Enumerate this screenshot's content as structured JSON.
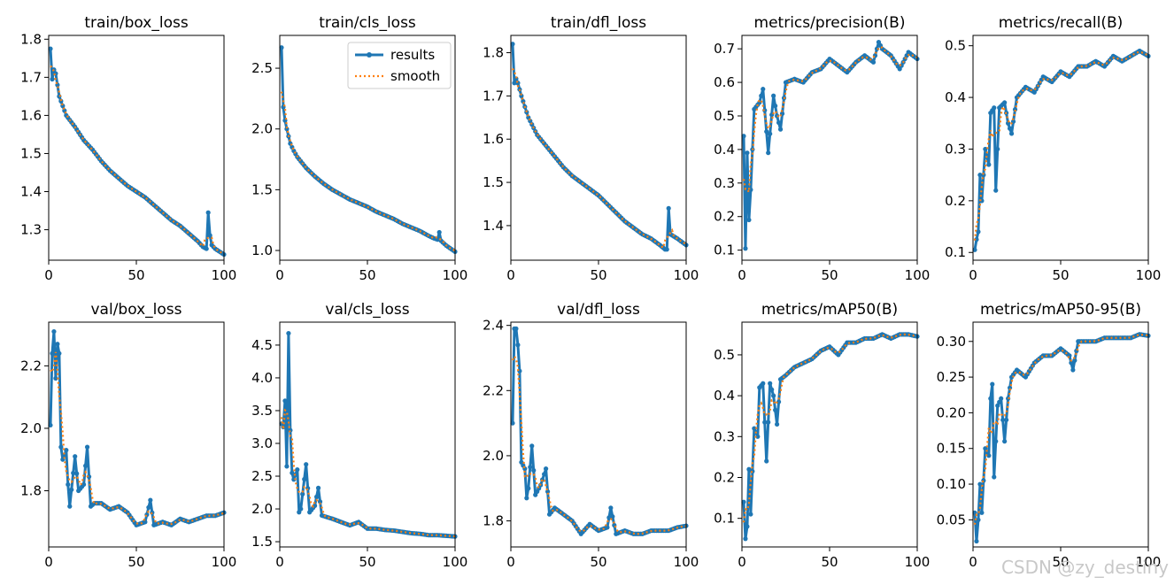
{
  "figure": {
    "watermark": "CSDN @zy_destiny"
  },
  "colors": {
    "results": "#1f77b4",
    "smooth": "#ff7f0e",
    "axis": "#000000"
  },
  "chart_data": [
    {
      "type": "line",
      "title": "train/box_loss",
      "xlim": [
        0,
        100
      ],
      "ylim": [
        1.22,
        1.81
      ],
      "xticks": [
        0,
        50,
        100
      ],
      "yticks": [
        1.3,
        1.4,
        1.5,
        1.6,
        1.7,
        1.8
      ],
      "anchors": [
        [
          1,
          1.775
        ],
        [
          2,
          1.695
        ],
        [
          3,
          1.72
        ],
        [
          4,
          1.71
        ],
        [
          6,
          1.65
        ],
        [
          10,
          1.6
        ],
        [
          15,
          1.57
        ],
        [
          20,
          1.535
        ],
        [
          25,
          1.51
        ],
        [
          30,
          1.48
        ],
        [
          35,
          1.455
        ],
        [
          40,
          1.435
        ],
        [
          45,
          1.415
        ],
        [
          50,
          1.4
        ],
        [
          55,
          1.385
        ],
        [
          60,
          1.365
        ],
        [
          65,
          1.345
        ],
        [
          70,
          1.325
        ],
        [
          75,
          1.31
        ],
        [
          80,
          1.29
        ],
        [
          85,
          1.27
        ],
        [
          88,
          1.255
        ],
        [
          90,
          1.25
        ],
        [
          91,
          1.345
        ],
        [
          92,
          1.285
        ],
        [
          93,
          1.26
        ],
        [
          95,
          1.25
        ],
        [
          100,
          1.235
        ]
      ]
    },
    {
      "type": "line",
      "title": "train/cls_loss",
      "xlim": [
        0,
        100
      ],
      "ylim": [
        0.92,
        2.77
      ],
      "xticks": [
        0,
        50,
        100
      ],
      "yticks": [
        1.0,
        1.5,
        2.0,
        2.5
      ],
      "legend": {
        "position": "top-right",
        "entries": [
          "results",
          "smooth"
        ]
      },
      "anchors": [
        [
          1,
          2.67
        ],
        [
          2,
          2.18
        ],
        [
          3,
          2.07
        ],
        [
          4,
          2.0
        ],
        [
          6,
          1.88
        ],
        [
          8,
          1.82
        ],
        [
          10,
          1.77
        ],
        [
          15,
          1.68
        ],
        [
          20,
          1.61
        ],
        [
          25,
          1.55
        ],
        [
          30,
          1.5
        ],
        [
          35,
          1.46
        ],
        [
          40,
          1.42
        ],
        [
          45,
          1.39
        ],
        [
          50,
          1.36
        ],
        [
          55,
          1.32
        ],
        [
          60,
          1.29
        ],
        [
          65,
          1.26
        ],
        [
          70,
          1.22
        ],
        [
          75,
          1.19
        ],
        [
          80,
          1.16
        ],
        [
          85,
          1.12
        ],
        [
          88,
          1.1
        ],
        [
          90,
          1.09
        ],
        [
          91,
          1.15
        ],
        [
          92,
          1.08
        ],
        [
          95,
          1.04
        ],
        [
          100,
          0.99
        ]
      ]
    },
    {
      "type": "line",
      "title": "train/dfl_loss",
      "xlim": [
        0,
        100
      ],
      "ylim": [
        1.32,
        1.84
      ],
      "xticks": [
        0,
        50,
        100
      ],
      "yticks": [
        1.4,
        1.5,
        1.6,
        1.7,
        1.8
      ],
      "anchors": [
        [
          1,
          1.82
        ],
        [
          2,
          1.73
        ],
        [
          3,
          1.74
        ],
        [
          4,
          1.73
        ],
        [
          6,
          1.7
        ],
        [
          10,
          1.65
        ],
        [
          15,
          1.61
        ],
        [
          20,
          1.585
        ],
        [
          25,
          1.56
        ],
        [
          30,
          1.535
        ],
        [
          35,
          1.515
        ],
        [
          40,
          1.5
        ],
        [
          45,
          1.485
        ],
        [
          50,
          1.47
        ],
        [
          55,
          1.45
        ],
        [
          60,
          1.43
        ],
        [
          65,
          1.41
        ],
        [
          70,
          1.395
        ],
        [
          75,
          1.38
        ],
        [
          80,
          1.37
        ],
        [
          85,
          1.355
        ],
        [
          88,
          1.345
        ],
        [
          89,
          1.345
        ],
        [
          90,
          1.44
        ],
        [
          91,
          1.38
        ],
        [
          93,
          1.375
        ],
        [
          95,
          1.37
        ],
        [
          100,
          1.355
        ]
      ]
    },
    {
      "type": "line",
      "title": "metrics/precision(B)",
      "xlim": [
        0,
        100
      ],
      "ylim": [
        0.07,
        0.74
      ],
      "xticks": [
        0,
        50,
        100
      ],
      "yticks": [
        0.1,
        0.2,
        0.3,
        0.4,
        0.5,
        0.6,
        0.7
      ],
      "anchors": [
        [
          1,
          0.44
        ],
        [
          2,
          0.105
        ],
        [
          3,
          0.39
        ],
        [
          4,
          0.19
        ],
        [
          5,
          0.28
        ],
        [
          7,
          0.52
        ],
        [
          10,
          0.54
        ],
        [
          12,
          0.58
        ],
        [
          15,
          0.39
        ],
        [
          18,
          0.56
        ],
        [
          20,
          0.5
        ],
        [
          22,
          0.46
        ],
        [
          25,
          0.6
        ],
        [
          30,
          0.61
        ],
        [
          35,
          0.6
        ],
        [
          40,
          0.63
        ],
        [
          45,
          0.64
        ],
        [
          50,
          0.67
        ],
        [
          55,
          0.65
        ],
        [
          60,
          0.63
        ],
        [
          65,
          0.66
        ],
        [
          70,
          0.68
        ],
        [
          75,
          0.66
        ],
        [
          78,
          0.72
        ],
        [
          80,
          0.7
        ],
        [
          85,
          0.68
        ],
        [
          90,
          0.64
        ],
        [
          95,
          0.69
        ],
        [
          100,
          0.67
        ]
      ]
    },
    {
      "type": "line",
      "title": "metrics/recall(B)",
      "xlim": [
        0,
        100
      ],
      "ylim": [
        0.085,
        0.52
      ],
      "xticks": [
        0,
        50,
        100
      ],
      "yticks": [
        0.1,
        0.2,
        0.3,
        0.4,
        0.5
      ],
      "anchors": [
        [
          1,
          0.105
        ],
        [
          2,
          0.125
        ],
        [
          3,
          0.14
        ],
        [
          4,
          0.25
        ],
        [
          5,
          0.2
        ],
        [
          7,
          0.3
        ],
        [
          9,
          0.27
        ],
        [
          10,
          0.37
        ],
        [
          12,
          0.38
        ],
        [
          13,
          0.22
        ],
        [
          15,
          0.38
        ],
        [
          18,
          0.39
        ],
        [
          20,
          0.35
        ],
        [
          22,
          0.33
        ],
        [
          25,
          0.4
        ],
        [
          30,
          0.42
        ],
        [
          35,
          0.41
        ],
        [
          40,
          0.44
        ],
        [
          45,
          0.43
        ],
        [
          50,
          0.45
        ],
        [
          55,
          0.44
        ],
        [
          60,
          0.46
        ],
        [
          65,
          0.46
        ],
        [
          70,
          0.47
        ],
        [
          75,
          0.46
        ],
        [
          80,
          0.48
        ],
        [
          85,
          0.47
        ],
        [
          90,
          0.48
        ],
        [
          95,
          0.49
        ],
        [
          100,
          0.48
        ]
      ]
    },
    {
      "type": "line",
      "title": "val/box_loss",
      "xlim": [
        0,
        100
      ],
      "ylim": [
        1.62,
        2.34
      ],
      "xticks": [
        0,
        50,
        100
      ],
      "yticks": [
        1.8,
        2.0,
        2.2
      ],
      "anchors": [
        [
          1,
          2.01
        ],
        [
          2,
          2.24
        ],
        [
          3,
          2.31
        ],
        [
          4,
          2.16
        ],
        [
          5,
          2.27
        ],
        [
          6,
          2.24
        ],
        [
          7,
          1.94
        ],
        [
          8,
          1.9
        ],
        [
          10,
          1.93
        ],
        [
          11,
          1.82
        ],
        [
          12,
          1.75
        ],
        [
          15,
          1.91
        ],
        [
          17,
          1.8
        ],
        [
          20,
          1.82
        ],
        [
          22,
          1.94
        ],
        [
          24,
          1.75
        ],
        [
          26,
          1.76
        ],
        [
          30,
          1.76
        ],
        [
          35,
          1.74
        ],
        [
          40,
          1.75
        ],
        [
          45,
          1.73
        ],
        [
          50,
          1.69
        ],
        [
          55,
          1.7
        ],
        [
          58,
          1.77
        ],
        [
          60,
          1.69
        ],
        [
          65,
          1.7
        ],
        [
          70,
          1.69
        ],
        [
          75,
          1.71
        ],
        [
          80,
          1.7
        ],
        [
          85,
          1.71
        ],
        [
          90,
          1.72
        ],
        [
          95,
          1.72
        ],
        [
          100,
          1.73
        ]
      ]
    },
    {
      "type": "line",
      "title": "val/cls_loss",
      "xlim": [
        0,
        100
      ],
      "ylim": [
        1.42,
        4.85
      ],
      "xticks": [
        0,
        50,
        100
      ],
      "yticks": [
        1.5,
        2.0,
        2.5,
        3.0,
        3.5,
        4.0,
        4.5
      ],
      "anchors": [
        [
          1,
          3.3
        ],
        [
          2,
          3.25
        ],
        [
          3,
          3.65
        ],
        [
          4,
          2.65
        ],
        [
          5,
          4.68
        ],
        [
          6,
          3.2
        ],
        [
          7,
          2.55
        ],
        [
          8,
          2.45
        ],
        [
          10,
          2.6
        ],
        [
          11,
          1.95
        ],
        [
          12,
          2.0
        ],
        [
          15,
          2.68
        ],
        [
          17,
          1.95
        ],
        [
          20,
          2.05
        ],
        [
          22,
          2.32
        ],
        [
          24,
          1.9
        ],
        [
          30,
          1.85
        ],
        [
          35,
          1.8
        ],
        [
          40,
          1.75
        ],
        [
          45,
          1.8
        ],
        [
          50,
          1.7
        ],
        [
          55,
          1.7
        ],
        [
          60,
          1.68
        ],
        [
          65,
          1.67
        ],
        [
          70,
          1.65
        ],
        [
          75,
          1.63
        ],
        [
          80,
          1.62
        ],
        [
          85,
          1.6
        ],
        [
          90,
          1.6
        ],
        [
          95,
          1.59
        ],
        [
          100,
          1.58
        ]
      ]
    },
    {
      "type": "line",
      "title": "val/dfl_loss",
      "xlim": [
        0,
        100
      ],
      "ylim": [
        1.72,
        2.41
      ],
      "xticks": [
        0,
        50,
        100
      ],
      "yticks": [
        1.8,
        2.0,
        2.2,
        2.4
      ],
      "anchors": [
        [
          1,
          2.1
        ],
        [
          2,
          2.39
        ],
        [
          3,
          2.39
        ],
        [
          4,
          2.34
        ],
        [
          5,
          2.26
        ],
        [
          6,
          1.98
        ],
        [
          8,
          1.96
        ],
        [
          9,
          1.87
        ],
        [
          10,
          1.9
        ],
        [
          12,
          2.03
        ],
        [
          14,
          1.88
        ],
        [
          17,
          1.91
        ],
        [
          20,
          1.96
        ],
        [
          22,
          1.82
        ],
        [
          25,
          1.84
        ],
        [
          30,
          1.82
        ],
        [
          35,
          1.8
        ],
        [
          40,
          1.76
        ],
        [
          45,
          1.79
        ],
        [
          50,
          1.77
        ],
        [
          55,
          1.78
        ],
        [
          57,
          1.84
        ],
        [
          60,
          1.76
        ],
        [
          65,
          1.77
        ],
        [
          70,
          1.76
        ],
        [
          75,
          1.76
        ],
        [
          80,
          1.77
        ],
        [
          85,
          1.77
        ],
        [
          90,
          1.77
        ],
        [
          95,
          1.78
        ],
        [
          100,
          1.785
        ]
      ]
    },
    {
      "type": "line",
      "title": "metrics/mAP50(B)",
      "xlim": [
        0,
        100
      ],
      "ylim": [
        0.03,
        0.58
      ],
      "xticks": [
        0,
        50,
        100
      ],
      "yticks": [
        0.1,
        0.2,
        0.3,
        0.4,
        0.5
      ],
      "anchors": [
        [
          1,
          0.14
        ],
        [
          2,
          0.05
        ],
        [
          3,
          0.08
        ],
        [
          4,
          0.22
        ],
        [
          5,
          0.11
        ],
        [
          7,
          0.32
        ],
        [
          9,
          0.3
        ],
        [
          10,
          0.42
        ],
        [
          12,
          0.43
        ],
        [
          14,
          0.24
        ],
        [
          16,
          0.43
        ],
        [
          18,
          0.4
        ],
        [
          20,
          0.33
        ],
        [
          22,
          0.44
        ],
        [
          25,
          0.45
        ],
        [
          30,
          0.47
        ],
        [
          35,
          0.48
        ],
        [
          40,
          0.49
        ],
        [
          45,
          0.51
        ],
        [
          50,
          0.52
        ],
        [
          55,
          0.5
        ],
        [
          60,
          0.53
        ],
        [
          65,
          0.53
        ],
        [
          70,
          0.54
        ],
        [
          75,
          0.54
        ],
        [
          80,
          0.55
        ],
        [
          85,
          0.54
        ],
        [
          90,
          0.55
        ],
        [
          95,
          0.55
        ],
        [
          100,
          0.545
        ]
      ]
    },
    {
      "type": "line",
      "title": "metrics/mAP50-95(B)",
      "xlim": [
        0,
        100
      ],
      "ylim": [
        0.012,
        0.327
      ],
      "xticks": [
        0,
        50,
        100
      ],
      "yticks": [
        0.05,
        0.1,
        0.15,
        0.2,
        0.25,
        0.3
      ],
      "anchors": [
        [
          1,
          0.06
        ],
        [
          2,
          0.02
        ],
        [
          3,
          0.05
        ],
        [
          4,
          0.1
        ],
        [
          5,
          0.06
        ],
        [
          7,
          0.15
        ],
        [
          9,
          0.14
        ],
        [
          10,
          0.22
        ],
        [
          11,
          0.24
        ],
        [
          12,
          0.11
        ],
        [
          14,
          0.21
        ],
        [
          16,
          0.22
        ],
        [
          18,
          0.16
        ],
        [
          20,
          0.22
        ],
        [
          22,
          0.25
        ],
        [
          25,
          0.26
        ],
        [
          30,
          0.25
        ],
        [
          35,
          0.27
        ],
        [
          40,
          0.28
        ],
        [
          45,
          0.28
        ],
        [
          50,
          0.29
        ],
        [
          55,
          0.28
        ],
        [
          57,
          0.26
        ],
        [
          60,
          0.3
        ],
        [
          65,
          0.3
        ],
        [
          70,
          0.3
        ],
        [
          75,
          0.305
        ],
        [
          80,
          0.305
        ],
        [
          85,
          0.305
        ],
        [
          90,
          0.305
        ],
        [
          95,
          0.31
        ],
        [
          100,
          0.308
        ]
      ]
    }
  ]
}
